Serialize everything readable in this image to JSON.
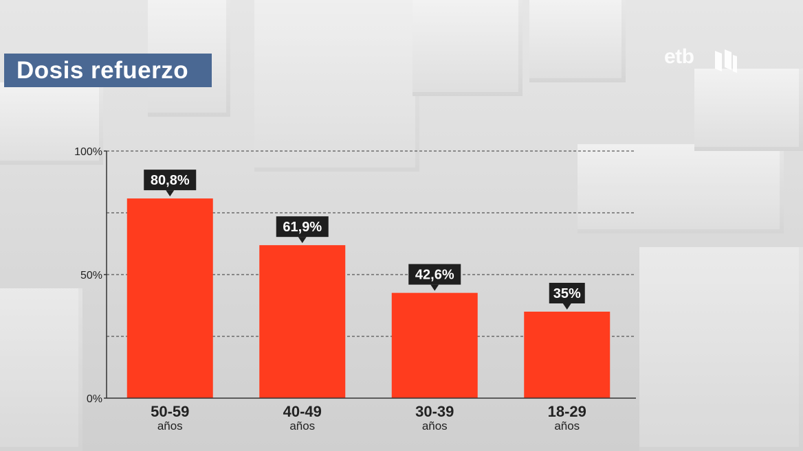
{
  "title": "Dosis refuerzo",
  "logo": {
    "text": "etb",
    "icon": "etb-logo-mark-icon"
  },
  "colors": {
    "bar": "#ff3c1e",
    "label_bg": "#1f1f1f",
    "title_bg": "#4a6893",
    "grid": "#333333"
  },
  "chart_data": {
    "type": "bar",
    "title": "Dosis refuerzo",
    "categories": [
      "50-59",
      "40-49",
      "30-39",
      "18-29"
    ],
    "category_sublabels": [
      "años",
      "años",
      "años",
      "años"
    ],
    "values": [
      80.8,
      61.9,
      42.6,
      35
    ],
    "value_labels": [
      "80,8%",
      "61,9%",
      "42,6%",
      "35%"
    ],
    "xlabel": "",
    "ylabel": "",
    "ylim": [
      0,
      100
    ],
    "yticks": [
      0,
      50,
      100
    ],
    "ytick_labels": [
      "0%",
      "50%",
      "100%"
    ],
    "gridlines": [
      25,
      50,
      75,
      100
    ],
    "grid": true,
    "grid_style": "dashed",
    "legend": "none"
  }
}
